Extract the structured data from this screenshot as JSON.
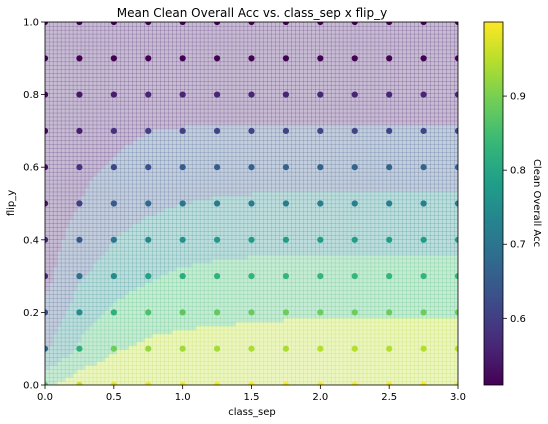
{
  "chart_data": {
    "type": "scatter",
    "title": "Mean Clean Overall Acc vs. class_sep x flip_y",
    "xlabel": "class_sep",
    "ylabel": "flip_y",
    "xlim": [
      0.0,
      3.0
    ],
    "ylim": [
      0.0,
      1.0
    ],
    "xticks": [
      0.0,
      0.5,
      1.0,
      1.5,
      2.0,
      2.5,
      3.0
    ],
    "xtick_labels": [
      "0.0",
      "0.5",
      "1.0",
      "1.5",
      "2.0",
      "2.5",
      "3.0"
    ],
    "yticks": [
      0.0,
      0.2,
      0.4,
      0.6,
      0.8,
      1.0
    ],
    "ytick_labels": [
      "0.0",
      "0.2",
      "0.4",
      "0.6",
      "0.8",
      "1.0"
    ],
    "grid": false,
    "background": "filled contour of the same metric (light, semi-transparent)",
    "colormap": "viridis",
    "colorbar": {
      "label": "Clean Overall Acc",
      "vmin": 0.51,
      "vmax": 1.0,
      "ticks": [
        0.6,
        0.7,
        0.8,
        0.9
      ],
      "tick_labels": [
        "0.6",
        "0.7",
        "0.8",
        "0.9"
      ]
    },
    "contour_levels": [
      0.5,
      0.6,
      0.7,
      0.8,
      0.9,
      1.0
    ],
    "x": [
      0.0,
      0.25,
      0.5,
      0.75,
      1.0,
      1.25,
      1.5,
      1.75,
      2.0,
      2.25,
      2.5,
      2.75,
      3.0
    ],
    "y": [
      0.0,
      0.1,
      0.2,
      0.3,
      0.4,
      0.5,
      0.6,
      0.7,
      0.8,
      0.9,
      1.0
    ],
    "values": [
      [
        0.88,
        0.96,
        0.98,
        0.99,
        0.995,
        0.997,
        0.998,
        0.999,
        0.999,
        0.999,
        0.999,
        0.999,
        0.999
      ],
      [
        0.68,
        0.82,
        0.89,
        0.92,
        0.93,
        0.935,
        0.94,
        0.94,
        0.945,
        0.945,
        0.945,
        0.945,
        0.945
      ],
      [
        0.63,
        0.75,
        0.82,
        0.86,
        0.875,
        0.88,
        0.885,
        0.89,
        0.89,
        0.89,
        0.89,
        0.89,
        0.89
      ],
      [
        0.57,
        0.69,
        0.75,
        0.79,
        0.815,
        0.825,
        0.83,
        0.835,
        0.835,
        0.835,
        0.835,
        0.835,
        0.835
      ],
      [
        0.56,
        0.64,
        0.7,
        0.74,
        0.76,
        0.77,
        0.775,
        0.78,
        0.78,
        0.78,
        0.78,
        0.78,
        0.78
      ],
      [
        0.54,
        0.6,
        0.65,
        0.68,
        0.7,
        0.71,
        0.715,
        0.72,
        0.72,
        0.72,
        0.72,
        0.72,
        0.72
      ],
      [
        0.53,
        0.58,
        0.61,
        0.63,
        0.65,
        0.655,
        0.66,
        0.665,
        0.665,
        0.665,
        0.665,
        0.665,
        0.665
      ],
      [
        0.52,
        0.55,
        0.58,
        0.6,
        0.605,
        0.61,
        0.61,
        0.61,
        0.61,
        0.61,
        0.61,
        0.61,
        0.61
      ],
      [
        0.52,
        0.54,
        0.55,
        0.56,
        0.56,
        0.56,
        0.56,
        0.56,
        0.56,
        0.56,
        0.56,
        0.56,
        0.56
      ],
      [
        0.51,
        0.51,
        0.51,
        0.51,
        0.51,
        0.51,
        0.51,
        0.51,
        0.51,
        0.51,
        0.51,
        0.51,
        0.51
      ],
      [
        0.51,
        0.51,
        0.51,
        0.51,
        0.51,
        0.51,
        0.51,
        0.51,
        0.51,
        0.51,
        0.51,
        0.51,
        0.51
      ]
    ]
  }
}
